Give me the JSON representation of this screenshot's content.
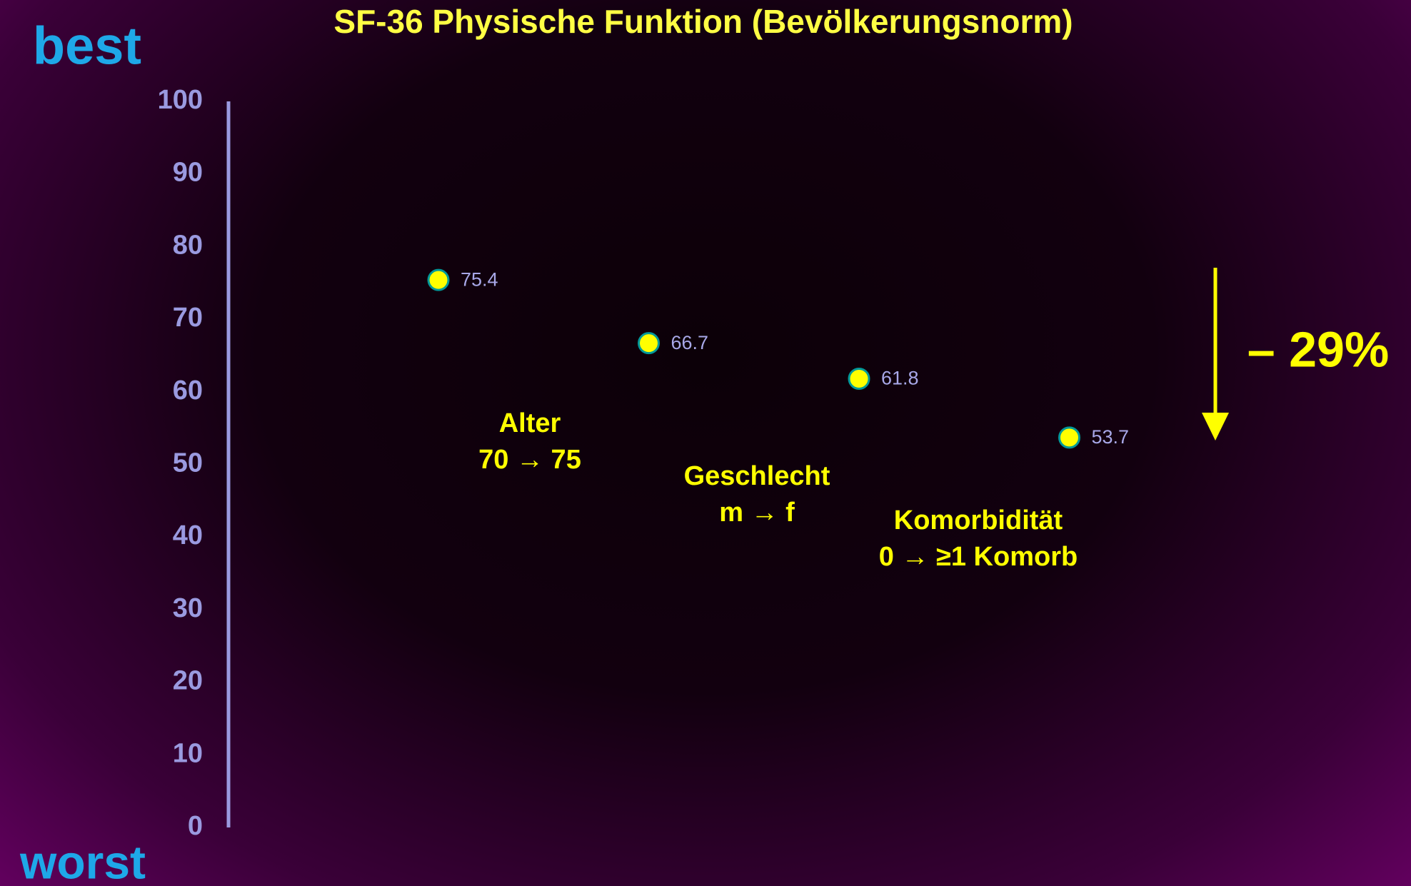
{
  "chart_data": {
    "type": "dot",
    "title": "SF-36 Physische Funktion (Bevölkerungsnorm)",
    "top_label": "best",
    "bottom_label": "worst",
    "categories": [
      null,
      null,
      null,
      null
    ],
    "values": [
      75.4,
      66.7,
      61.8,
      53.7
    ],
    "color": "#ffff00",
    "ylim": [
      0,
      100
    ],
    "yticks": [
      0,
      10,
      20,
      30,
      40,
      50,
      60,
      70,
      80,
      90,
      100
    ],
    "grid": false,
    "annotations": [
      {
        "lines": [
          "Alter",
          "70 → 75"
        ]
      },
      {
        "lines": [
          "Geschlecht",
          "m → f"
        ]
      },
      {
        "lines": [
          "Komorbidität",
          "0 → ≥1 Komorb"
        ]
      }
    ],
    "change_label": "– 29%"
  }
}
